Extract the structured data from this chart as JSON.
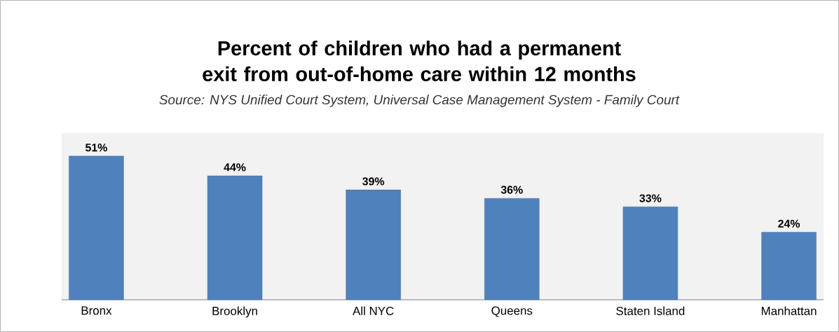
{
  "chart_data": {
    "type": "bar",
    "title": "Percent of children who had a permanent exit from out-of-home care within 12 months",
    "annotations": [
      "Source: NYS Unified Court System, Universal Case Management System - Family Court"
    ],
    "categories": [
      "Bronx",
      "Brooklyn",
      "All NYC",
      "Queens",
      "Staten Island",
      "Manhattan"
    ],
    "values": [
      51,
      44,
      39,
      36,
      33,
      24
    ],
    "value_labels": [
      "51%",
      "44%",
      "39%",
      "36%",
      "33%",
      "24%"
    ],
    "color": "#4f81bd"
  }
}
